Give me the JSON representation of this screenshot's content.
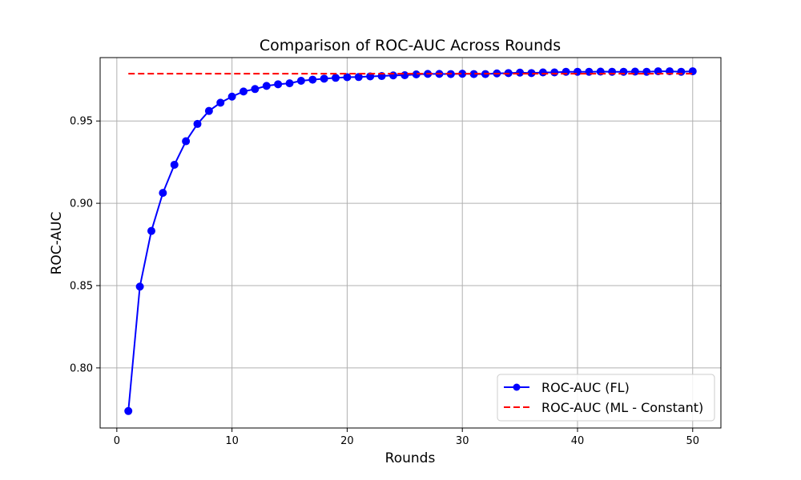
{
  "chart_data": {
    "type": "line",
    "title": "Comparison of ROC-AUC Across Rounds",
    "xlabel": "Rounds",
    "ylabel": "ROC-AUC",
    "xlim": [
      -1.45,
      52.45
    ],
    "ylim": [
      0.7635,
      0.9885
    ],
    "xticks": [
      0,
      10,
      20,
      30,
      40,
      50
    ],
    "yticks": [
      0.8,
      0.85,
      0.9,
      0.95
    ],
    "ytick_labels": [
      "0.80",
      "0.85",
      "0.90",
      "0.95"
    ],
    "grid": true,
    "legend_position": "lower-right",
    "series": [
      {
        "name": "ROC-AUC (FL)",
        "style": "solid-with-markers",
        "color": "#0000ff",
        "x": [
          1,
          2,
          3,
          4,
          5,
          6,
          7,
          8,
          9,
          10,
          11,
          12,
          13,
          14,
          15,
          16,
          17,
          18,
          19,
          20,
          21,
          22,
          23,
          24,
          25,
          26,
          27,
          28,
          29,
          30,
          31,
          32,
          33,
          34,
          35,
          36,
          37,
          38,
          39,
          40,
          41,
          42,
          43,
          44,
          45,
          46,
          47,
          48,
          49,
          50
        ],
        "values": [
          0.7738,
          0.8494,
          0.8832,
          0.9063,
          0.9234,
          0.9377,
          0.9482,
          0.9561,
          0.9611,
          0.9648,
          0.9679,
          0.9694,
          0.9713,
          0.9723,
          0.9729,
          0.9744,
          0.9751,
          0.9757,
          0.9762,
          0.9766,
          0.9767,
          0.9771,
          0.9773,
          0.9777,
          0.9778,
          0.9783,
          0.9786,
          0.9786,
          0.9785,
          0.9787,
          0.9785,
          0.9785,
          0.9789,
          0.9791,
          0.9794,
          0.9791,
          0.9795,
          0.9795,
          0.9799,
          0.9799,
          0.9799,
          0.98,
          0.9799,
          0.9799,
          0.98,
          0.9799,
          0.9802,
          0.9802,
          0.9799,
          0.9802
        ]
      },
      {
        "name": "ROC-AUC (ML - Constant)",
        "style": "dashed",
        "color": "#ff0000",
        "x": [
          1,
          50
        ],
        "values": [
          0.9787,
          0.9787
        ]
      }
    ]
  }
}
